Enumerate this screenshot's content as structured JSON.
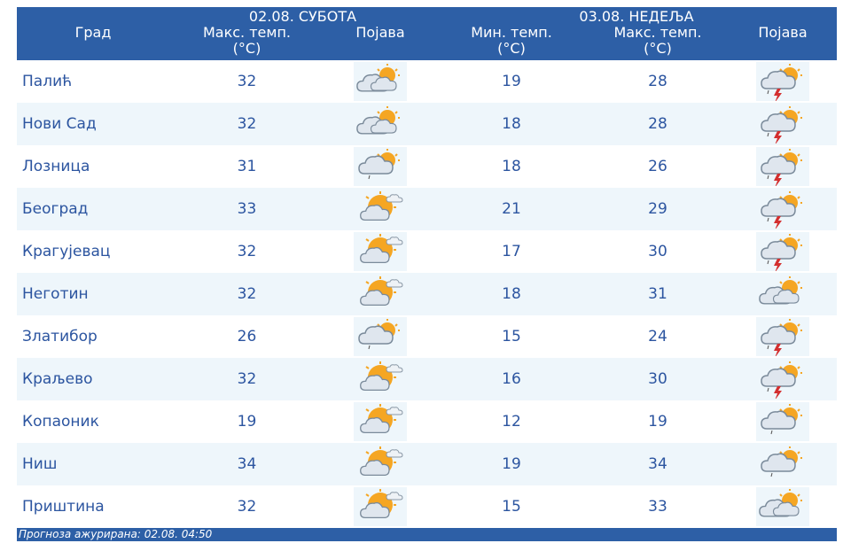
{
  "header": {
    "city_label": "Град",
    "day1": {
      "date": "02.08. СУБОТА",
      "max_label": "Макс. темп.",
      "unit": "(°C)",
      "phen_label": "Појава"
    },
    "day2": {
      "date": "03.08. НЕДЕЉА",
      "min_label": "Мин. темп.",
      "min_unit": "(°C)",
      "max_label": "Макс. темп.",
      "max_unit": "(°C)",
      "phen_label": "Појава"
    }
  },
  "rows": [
    {
      "city": "Палић",
      "d1_max": "32",
      "d1_icon": "partly-cloudy-icon",
      "d2_min": "19",
      "d2_max": "28",
      "d2_icon": "thunderstorm-icon"
    },
    {
      "city": "Нови Сад",
      "d1_max": "32",
      "d1_icon": "partly-cloudy-icon",
      "d2_min": "18",
      "d2_max": "28",
      "d2_icon": "thunderstorm-icon"
    },
    {
      "city": "Лозница",
      "d1_max": "31",
      "d1_icon": "cloudy-light-rain-icon",
      "d2_min": "18",
      "d2_max": "26",
      "d2_icon": "thunderstorm-icon"
    },
    {
      "city": "Београд",
      "d1_max": "33",
      "d1_icon": "mostly-sunny-icon",
      "d2_min": "21",
      "d2_max": "29",
      "d2_icon": "thunderstorm-icon"
    },
    {
      "city": "Крагујевац",
      "d1_max": "32",
      "d1_icon": "mostly-sunny-icon",
      "d2_min": "17",
      "d2_max": "30",
      "d2_icon": "thunderstorm-icon"
    },
    {
      "city": "Неготин",
      "d1_max": "32",
      "d1_icon": "mostly-sunny-icon",
      "d2_min": "18",
      "d2_max": "31",
      "d2_icon": "partly-cloudy-icon"
    },
    {
      "city": "Златибор",
      "d1_max": "26",
      "d1_icon": "cloudy-light-rain-icon",
      "d2_min": "15",
      "d2_max": "24",
      "d2_icon": "thunderstorm-icon"
    },
    {
      "city": "Краљево",
      "d1_max": "32",
      "d1_icon": "mostly-sunny-icon",
      "d2_min": "16",
      "d2_max": "30",
      "d2_icon": "thunderstorm-icon"
    },
    {
      "city": "Копаоник",
      "d1_max": "19",
      "d1_icon": "mostly-sunny-icon",
      "d2_min": "12",
      "d2_max": "19",
      "d2_icon": "cloudy-light-rain-icon"
    },
    {
      "city": "Ниш",
      "d1_max": "34",
      "d1_icon": "mostly-sunny-icon",
      "d2_min": "19",
      "d2_max": "34",
      "d2_icon": "cloudy-light-rain-icon"
    },
    {
      "city": "Приштина",
      "d1_max": "32",
      "d1_icon": "mostly-sunny-icon",
      "d2_min": "15",
      "d2_max": "33",
      "d2_icon": "partly-cloudy-icon"
    }
  ],
  "footer": {
    "text": "Прогноза ажурирана:  02.08.  04:50"
  },
  "colors": {
    "header_bg": "#2d5fa6",
    "text": "#2c55a0",
    "stripe": "#eef6fb",
    "sun": "#f5a623",
    "lightning": "#d32f2f"
  }
}
